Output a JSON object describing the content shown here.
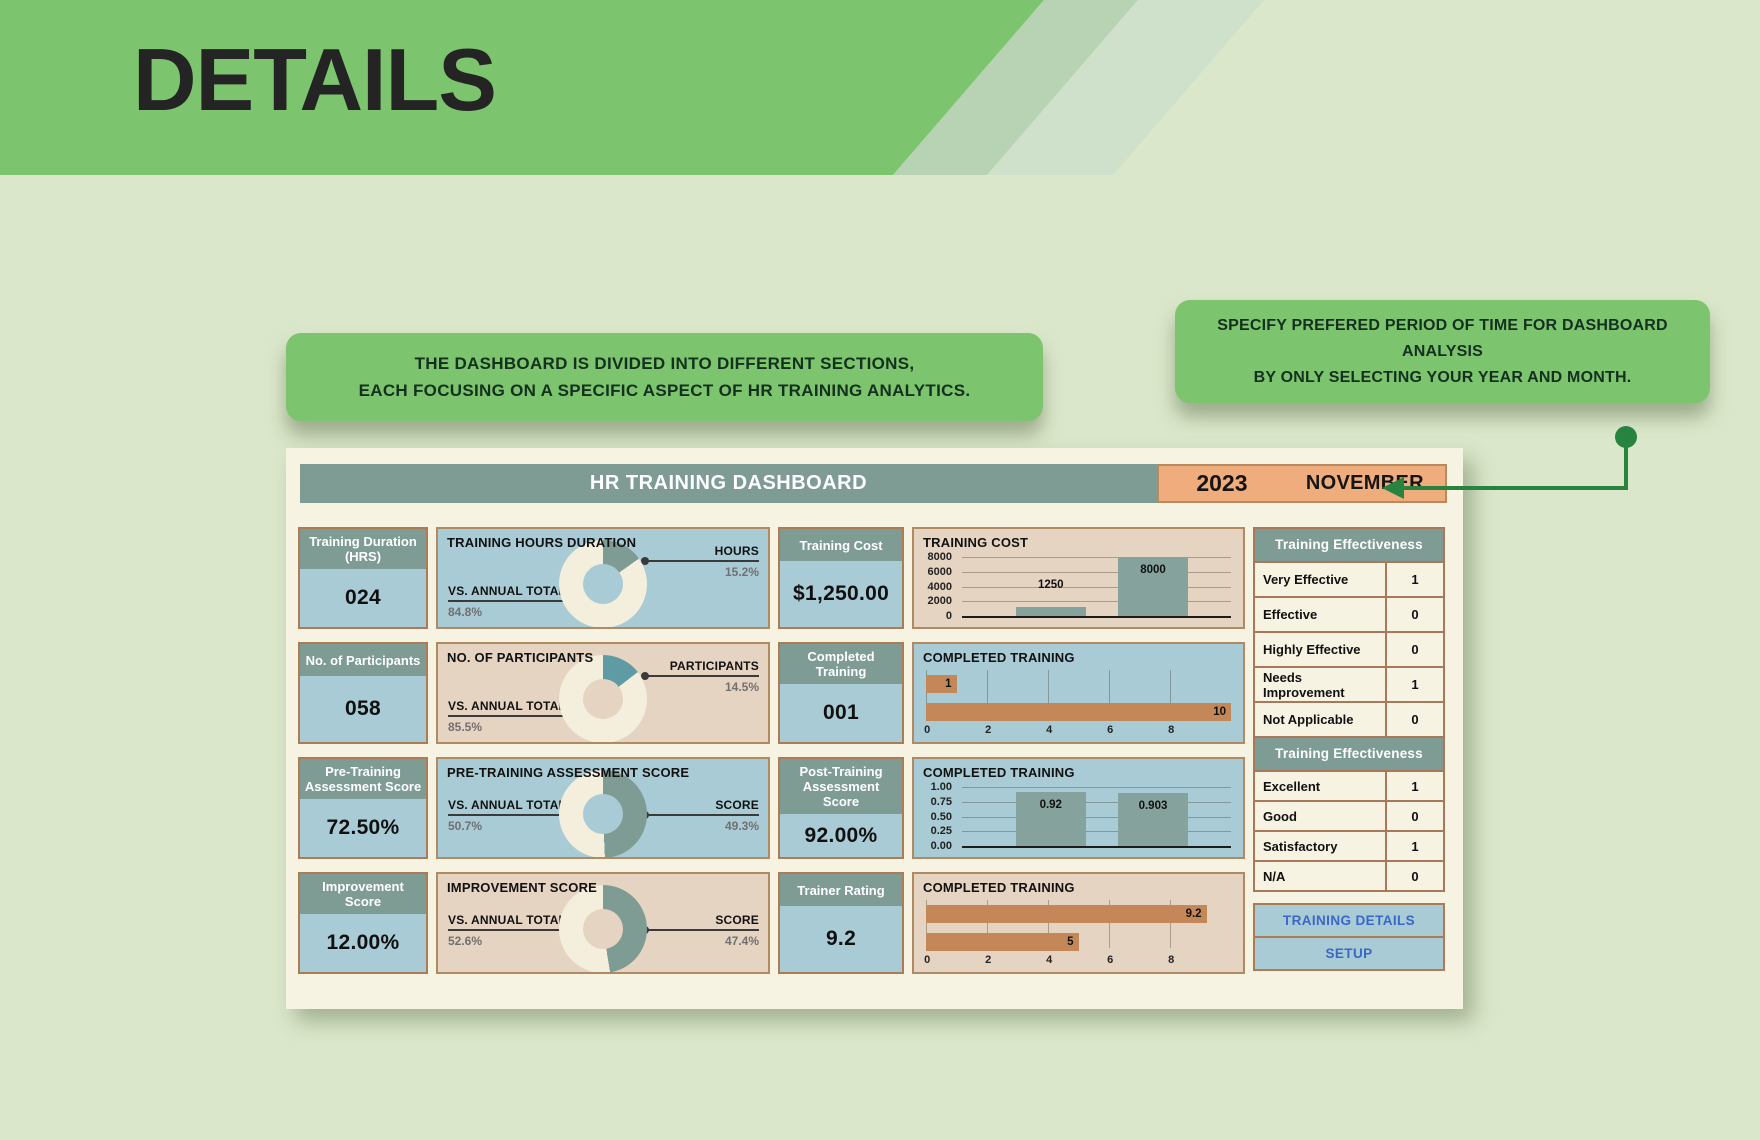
{
  "header": {
    "title": "DETAILS"
  },
  "callouts": {
    "left": {
      "line1": "THE DASHBOARD IS DIVIDED INTO DIFFERENT SECTIONS,",
      "line2": "EACH FOCUSING ON A SPECIFIC ASPECT OF HR TRAINING ANALYTICS."
    },
    "right": {
      "line1": "SPECIFY PREFERED PERIOD OF TIME FOR DASHBOARD ANALYSIS",
      "line2": "BY ONLY SELECTING YOUR YEAR AND MONTH."
    }
  },
  "dashboard": {
    "title": "HR TRAINING DASHBOARD",
    "year": "2023",
    "month": "NOVEMBER",
    "kpis_left": [
      {
        "label": "Training Duration (HRS)",
        "value": "024"
      },
      {
        "label": "No. of Participants",
        "value": "058"
      },
      {
        "label": "Pre-Training Assessment Score",
        "value": "72.50%"
      },
      {
        "label": "Improvement Score",
        "value": "12.00%"
      }
    ],
    "kpis_mid": [
      {
        "label": "Training Cost",
        "prefix": "$",
        "value": "1,250.00"
      },
      {
        "label": "Completed Training",
        "value": "001"
      },
      {
        "label": "Post-Training Assessment Score",
        "value": "92.00%"
      },
      {
        "label": "Trainer Rating",
        "value": "9.2"
      }
    ],
    "effectiveness_tables": [
      {
        "header": "Training Effectiveness",
        "rows": [
          [
            "Very Effective",
            "1"
          ],
          [
            "Effective",
            "0"
          ],
          [
            "Highly Effective",
            "0"
          ],
          [
            "Needs Improvement",
            "1"
          ],
          [
            "Not Applicable",
            "0"
          ]
        ]
      },
      {
        "header": "Training Effectiveness",
        "rows": [
          [
            "Excellent",
            "1"
          ],
          [
            "Good",
            "0"
          ],
          [
            "Satisfactory",
            "1"
          ],
          [
            "N/A",
            "0"
          ]
        ]
      }
    ],
    "buttons": [
      "TRAINING DETAILS",
      "SETUP"
    ]
  },
  "chart_data": [
    {
      "type": "pie",
      "title": "TRAINING HOURS DURATION",
      "slices": [
        {
          "label": "HOURS",
          "value": 15.2,
          "pct": "15.2%",
          "color": "#7e9c94"
        },
        {
          "label": "VS. ANNUAL TOTAL",
          "value": 84.8,
          "pct": "84.8%",
          "color": "#f4eedd"
        }
      ]
    },
    {
      "type": "bar",
      "orientation": "vertical",
      "title": "TRAINING COST",
      "values": [
        1250,
        8000
      ],
      "labels": [
        "1250",
        "8000"
      ],
      "ymax": 8000,
      "yticks": [
        "8000",
        "6000",
        "4000",
        "2000",
        "0"
      ],
      "bar_color": "#85a39c"
    },
    {
      "type": "pie",
      "title": "NO. OF PARTICIPANTS",
      "slices": [
        {
          "label": "PARTICIPANTS",
          "value": 14.5,
          "pct": "14.5%",
          "color": "#5e9ba4"
        },
        {
          "label": "VS. ANNUAL TOTAL",
          "value": 85.5,
          "pct": "85.5%",
          "color": "#f4eedd"
        }
      ]
    },
    {
      "type": "bar",
      "orientation": "horizontal",
      "title": "COMPLETED TRAINING",
      "values": [
        1,
        10
      ],
      "labels": [
        "1",
        "10"
      ],
      "xmax": 10,
      "xticks": [
        "0",
        "2",
        "4",
        "6",
        "8"
      ],
      "bar_color": "#c38758"
    },
    {
      "type": "pie",
      "title": "PRE-TRAINING ASSESSMENT SCORE",
      "slices": [
        {
          "label": "SCORE",
          "value": 49.3,
          "pct": "49.3%",
          "color": "#7e9c94"
        },
        {
          "label": "VS. ANNUAL TOTAL",
          "value": 50.7,
          "pct": "50.7%",
          "color": "#f4eedd"
        }
      ]
    },
    {
      "type": "bar",
      "orientation": "vertical",
      "title": "COMPLETED TRAINING",
      "values": [
        0.92,
        0.903
      ],
      "labels": [
        "0.92",
        "0.903"
      ],
      "ymax": 1,
      "yticks": [
        "1.00",
        "0.75",
        "0.50",
        "0.25",
        "0.00"
      ],
      "bar_color": "#85a39c"
    },
    {
      "type": "pie",
      "title": "IMPROVEMENT SCORE",
      "slices": [
        {
          "label": "SCORE",
          "value": 47.4,
          "pct": "47.4%",
          "color": "#7e9c94"
        },
        {
          "label": "VS. ANNUAL TOTAL",
          "value": 52.6,
          "pct": "52.6%",
          "color": "#f4eedd"
        }
      ]
    },
    {
      "type": "bar",
      "orientation": "horizontal",
      "title": "COMPLETED TRAINING",
      "values": [
        9.2,
        5
      ],
      "labels": [
        "9.2",
        "5"
      ],
      "xmax": 10,
      "xticks": [
        "0",
        "2",
        "4",
        "6",
        "8"
      ],
      "bar_color": "#c38758"
    }
  ]
}
